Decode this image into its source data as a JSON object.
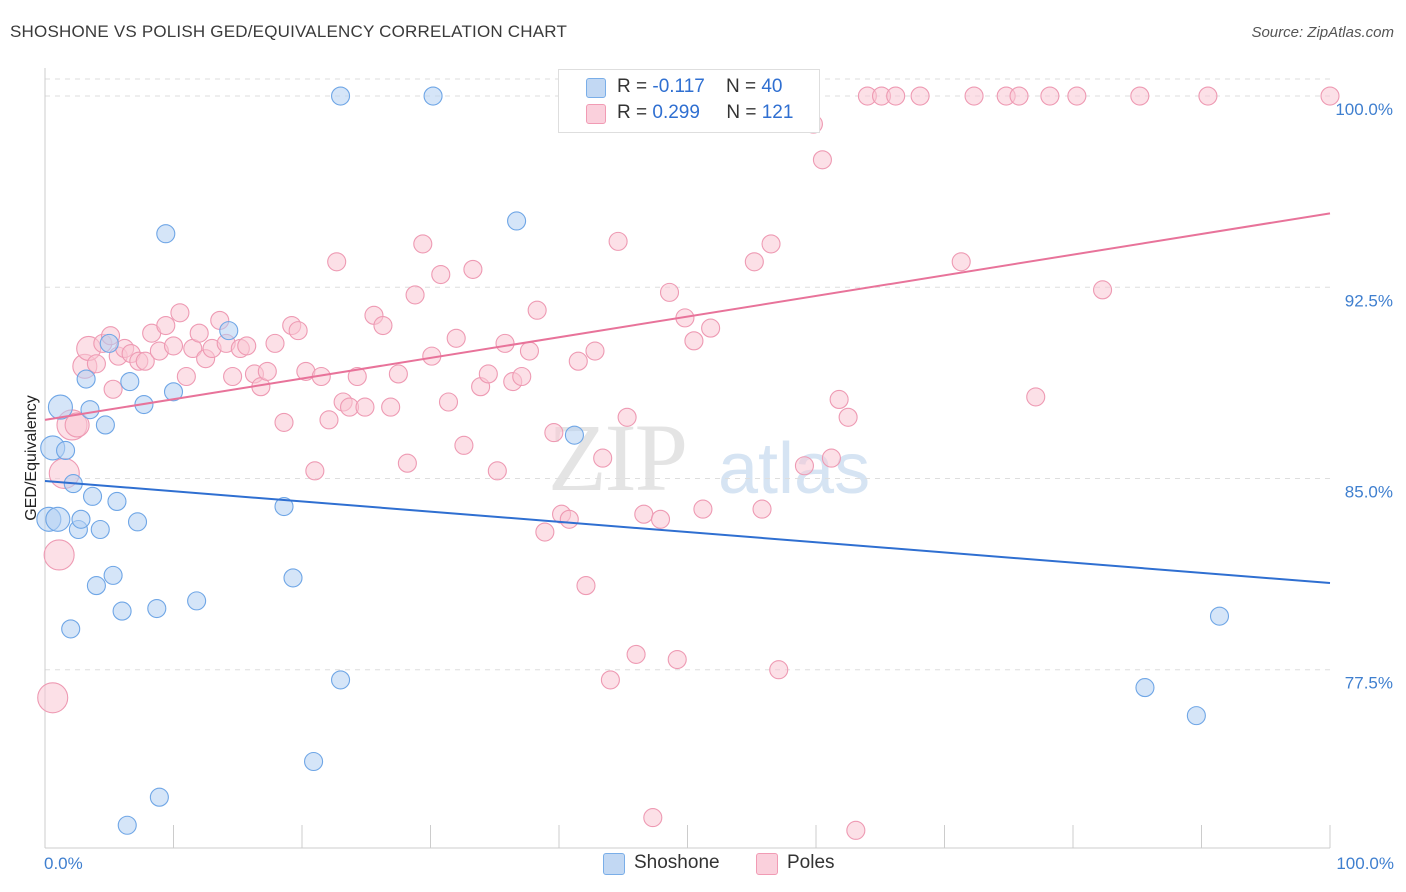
{
  "title": "SHOSHONE VS POLISH GED/EQUIVALENCY CORRELATION CHART",
  "source": "Source: ZipAtlas.com",
  "watermark": {
    "zip": "ZIP",
    "atlas": "atlas"
  },
  "legend": {
    "rows": [
      {
        "r_label": "R = ",
        "r_value": "-0.117",
        "n_label": "N = ",
        "n_value": "40",
        "color": "#a9c8f0"
      },
      {
        "r_label": "R = ",
        "r_value": "0.299",
        "n_label": "N = ",
        "n_value": "121",
        "color": "#f7b9cc"
      }
    ]
  },
  "bottom_legend": [
    {
      "label": "Shoshone",
      "color": "#a9c8f0"
    },
    {
      "label": "Poles",
      "color": "#f7b9cc"
    }
  ],
  "chart_data": {
    "type": "scatter",
    "ylabel": "GED/Equivalency",
    "x_tick_labels": [
      "0.0%",
      "100.0%"
    ],
    "y_ticks": [
      {
        "value": 77.5,
        "label": "77.5%"
      },
      {
        "value": 85.0,
        "label": "85.0%"
      },
      {
        "value": 92.5,
        "label": "92.5%"
      },
      {
        "value": 100.0,
        "label": "100.0%"
      }
    ],
    "xlim": [
      0,
      100
    ],
    "ylim": [
      70.9,
      101.1
    ],
    "grid": true,
    "series": [
      {
        "name": "Shoshone",
        "color": "#6fa6e6",
        "fill": "#b3cff2",
        "trend": {
          "x": [
            0,
            100
          ],
          "y": [
            84.9,
            80.9
          ],
          "color": "#2f6fd1"
        },
        "points": [
          [
            0.3,
            83.4
          ],
          [
            0.6,
            86.2
          ],
          [
            1.0,
            83.4
          ],
          [
            1.2,
            87.8
          ],
          [
            1.6,
            86.1
          ],
          [
            2.0,
            79.1
          ],
          [
            2.2,
            84.8
          ],
          [
            2.6,
            83.0
          ],
          [
            2.8,
            83.4
          ],
          [
            3.2,
            88.9
          ],
          [
            3.5,
            87.7
          ],
          [
            3.7,
            84.3
          ],
          [
            4.0,
            80.8
          ],
          [
            4.3,
            83.0
          ],
          [
            4.7,
            87.1
          ],
          [
            5.0,
            90.3
          ],
          [
            5.3,
            81.2
          ],
          [
            5.6,
            84.1
          ],
          [
            6.0,
            79.8
          ],
          [
            6.6,
            88.8
          ],
          [
            7.2,
            83.3
          ],
          [
            7.7,
            87.9
          ],
          [
            8.7,
            79.9
          ],
          [
            8.9,
            72.5
          ],
          [
            9.4,
            94.6
          ],
          [
            10.0,
            88.4
          ],
          [
            11.8,
            80.2
          ],
          [
            14.3,
            90.8
          ],
          [
            18.6,
            83.9
          ],
          [
            19.3,
            81.1
          ],
          [
            20.9,
            73.9
          ],
          [
            23.0,
            77.1
          ],
          [
            23.0,
            100.0
          ],
          [
            30.2,
            100.0
          ],
          [
            6.4,
            71.4
          ],
          [
            36.7,
            95.1
          ],
          [
            41.2,
            86.7
          ],
          [
            85.6,
            76.8
          ],
          [
            91.4,
            79.6
          ],
          [
            89.6,
            75.7
          ]
        ]
      },
      {
        "name": "Poles",
        "color": "#ee9ab3",
        "fill": "#f9c6d4",
        "trend": {
          "x": [
            0,
            100
          ],
          "y": [
            87.3,
            95.4
          ],
          "color": "#e8739a"
        },
        "points": [
          [
            0.6,
            76.4
          ],
          [
            1.1,
            82.0
          ],
          [
            1.5,
            85.2
          ],
          [
            2.1,
            87.1
          ],
          [
            2.5,
            87.1
          ],
          [
            3.1,
            89.4
          ],
          [
            3.4,
            90.1
          ],
          [
            4.0,
            89.5
          ],
          [
            4.5,
            90.3
          ],
          [
            5.1,
            90.6
          ],
          [
            5.3,
            88.5
          ],
          [
            5.7,
            89.8
          ],
          [
            6.2,
            90.1
          ],
          [
            6.7,
            89.9
          ],
          [
            7.3,
            89.6
          ],
          [
            7.8,
            89.6
          ],
          [
            8.3,
            90.7
          ],
          [
            8.9,
            90.0
          ],
          [
            9.4,
            91.0
          ],
          [
            10.0,
            90.2
          ],
          [
            10.5,
            91.5
          ],
          [
            11.0,
            89.0
          ],
          [
            11.5,
            90.1
          ],
          [
            12.0,
            90.7
          ],
          [
            12.5,
            89.7
          ],
          [
            13.0,
            90.1
          ],
          [
            13.6,
            91.2
          ],
          [
            14.1,
            90.3
          ],
          [
            14.6,
            89.0
          ],
          [
            15.2,
            90.1
          ],
          [
            15.7,
            90.2
          ],
          [
            16.3,
            89.1
          ],
          [
            16.8,
            88.6
          ],
          [
            17.3,
            89.2
          ],
          [
            17.9,
            90.3
          ],
          [
            18.6,
            87.2
          ],
          [
            19.2,
            91.0
          ],
          [
            19.7,
            90.8
          ],
          [
            20.3,
            89.2
          ],
          [
            21.0,
            85.3
          ],
          [
            21.5,
            89.0
          ],
          [
            22.1,
            87.3
          ],
          [
            22.7,
            93.5
          ],
          [
            23.2,
            88.0
          ],
          [
            23.7,
            87.8
          ],
          [
            24.3,
            89.0
          ],
          [
            24.9,
            87.8
          ],
          [
            25.6,
            91.4
          ],
          [
            26.3,
            91.0
          ],
          [
            26.9,
            87.8
          ],
          [
            27.5,
            89.1
          ],
          [
            28.2,
            85.6
          ],
          [
            28.8,
            92.2
          ],
          [
            29.4,
            94.2
          ],
          [
            30.1,
            89.8
          ],
          [
            30.8,
            93.0
          ],
          [
            31.4,
            88.0
          ],
          [
            32.0,
            90.5
          ],
          [
            32.6,
            86.3
          ],
          [
            33.3,
            93.2
          ],
          [
            33.9,
            88.6
          ],
          [
            34.5,
            89.1
          ],
          [
            35.2,
            85.3
          ],
          [
            35.8,
            90.3
          ],
          [
            36.4,
            88.8
          ],
          [
            37.1,
            89.0
          ],
          [
            37.7,
            90.0
          ],
          [
            38.3,
            91.6
          ],
          [
            38.9,
            82.9
          ],
          [
            39.6,
            86.8
          ],
          [
            40.2,
            83.6
          ],
          [
            40.8,
            83.4
          ],
          [
            41.5,
            89.6
          ],
          [
            42.1,
            80.8
          ],
          [
            42.8,
            90.0
          ],
          [
            43.4,
            85.8
          ],
          [
            44.0,
            77.1
          ],
          [
            44.6,
            94.3
          ],
          [
            45.3,
            87.4
          ],
          [
            46.0,
            78.1
          ],
          [
            46.6,
            83.6
          ],
          [
            47.3,
            71.7
          ],
          [
            47.9,
            83.4
          ],
          [
            48.6,
            92.3
          ],
          [
            49.2,
            77.9
          ],
          [
            49.8,
            91.3
          ],
          [
            50.5,
            90.4
          ],
          [
            51.2,
            83.8
          ],
          [
            51.8,
            90.9
          ],
          [
            52.5,
            99.2
          ],
          [
            53.2,
            100.0
          ],
          [
            53.8,
            100.0
          ],
          [
            54.5,
            100.0
          ],
          [
            55.2,
            93.5
          ],
          [
            55.8,
            83.8
          ],
          [
            56.5,
            94.2
          ],
          [
            57.1,
            77.5
          ],
          [
            57.8,
            100.0
          ],
          [
            58.5,
            100.0
          ],
          [
            59.1,
            85.5
          ],
          [
            59.8,
            98.9
          ],
          [
            60.5,
            97.5
          ],
          [
            61.2,
            85.8
          ],
          [
            61.8,
            88.1
          ],
          [
            62.5,
            87.4
          ],
          [
            63.1,
            71.2
          ],
          [
            64.0,
            100.0
          ],
          [
            65.1,
            100.0
          ],
          [
            66.2,
            100.0
          ],
          [
            68.1,
            100.0
          ],
          [
            71.3,
            93.5
          ],
          [
            72.3,
            100.0
          ],
          [
            74.8,
            100.0
          ],
          [
            75.8,
            100.0
          ],
          [
            77.1,
            88.2
          ],
          [
            78.2,
            100.0
          ],
          [
            80.3,
            100.0
          ],
          [
            82.3,
            92.4
          ],
          [
            85.2,
            100.0
          ],
          [
            90.5,
            100.0
          ],
          [
            100.0,
            100.0
          ]
        ]
      }
    ]
  }
}
